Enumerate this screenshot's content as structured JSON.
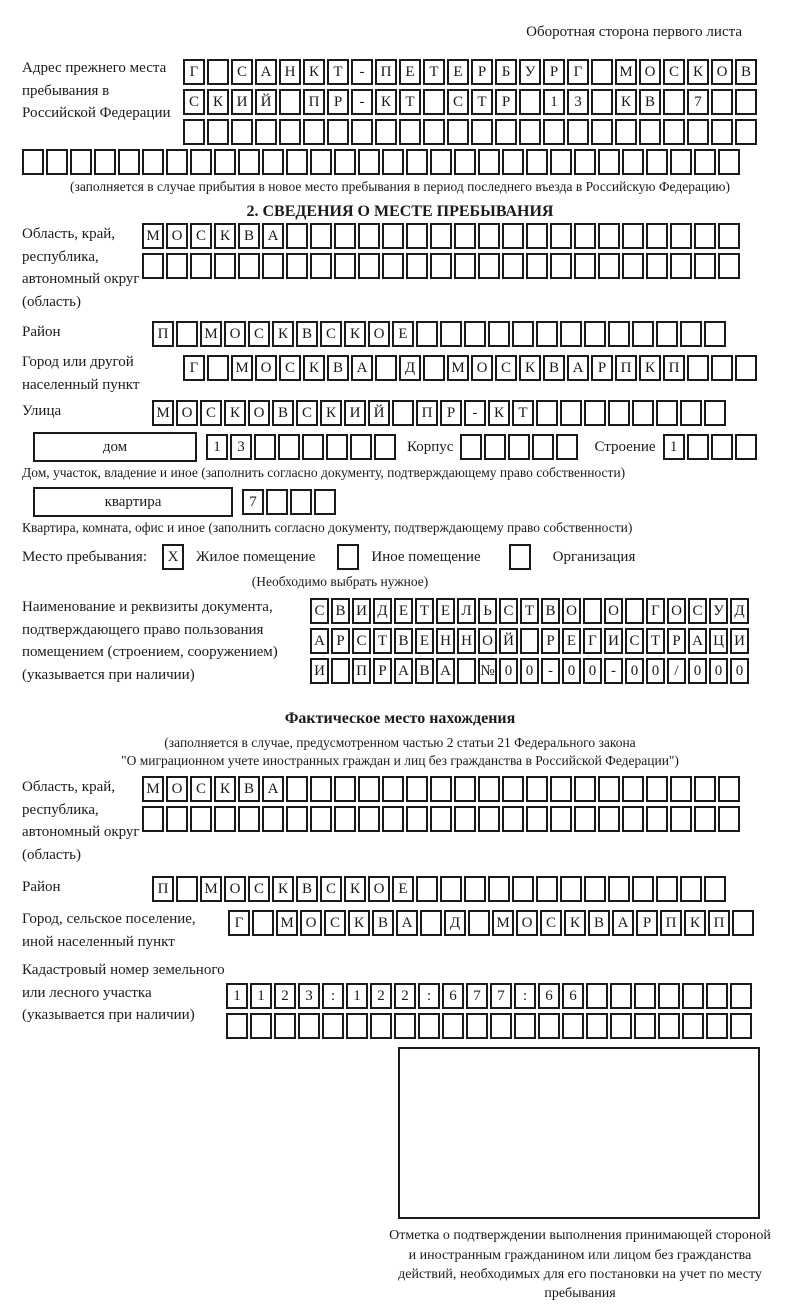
{
  "page": {
    "side_note": "Оборотная сторона первого листа"
  },
  "prev_address": {
    "label": "Адрес прежнего места пребывания в Российской Федерации",
    "note": "(заполняется в случае прибытия в новое место пребывания в период последнего въезда в Российскую Федерацию)",
    "rows": [
      {
        "text": "Г САНКТ-ПЕТЕРБУРГ МОСКОВ",
        "len": 24
      },
      {
        "text": "СКИЙ ПР-КТ СТР 13 КВ 7",
        "len": 24
      },
      {
        "text": "",
        "len": 24
      },
      {
        "text": "",
        "len": 30
      }
    ]
  },
  "section2": {
    "heading": "2. СВЕДЕНИЯ О МЕСТЕ ПРЕБЫВАНИЯ",
    "region": {
      "label": "Область, край, республика, автономный округ (область)",
      "rows": [
        {
          "text": "МОСКВА",
          "len": 25
        },
        {
          "text": "",
          "len": 25
        }
      ]
    },
    "district": {
      "label": "Район",
      "row": {
        "text": "П МОСКВСКОЕ",
        "len": 24
      }
    },
    "city": {
      "label": "Город или другой населенный пункт",
      "row": {
        "text": "Г МОСКВА Д МОСКВАРПКП",
        "len": 24
      }
    },
    "street": {
      "label": "Улица",
      "row": {
        "text": "МОСКОВСКИЙ ПР-КТ",
        "len": 24
      }
    },
    "house": {
      "box_label": "дом",
      "row": {
        "text": "13",
        "len": 8
      },
      "korpus_label": "Корпус",
      "korpus_row": {
        "text": "",
        "len": 5
      },
      "stroenie_label": "Строение",
      "stroenie_row": {
        "text": "1",
        "len": 4
      },
      "note": "Дом, участок, владение и иное (заполнить согласно документу, подтверждающему право собственности)"
    },
    "apartment": {
      "box_label": "квартира",
      "row": {
        "text": "7",
        "len": 4
      },
      "note": "Квартира, комната, офис и иное (заполнить согласно документу, подтверждающему право собственности)"
    },
    "place_type": {
      "label": "Место пребывания:",
      "options": [
        {
          "label": "Жилое помещение",
          "mark": "X"
        },
        {
          "label": "Иное помещение",
          "mark": ""
        },
        {
          "label": "Организация",
          "mark": ""
        }
      ],
      "note": "(Необходимо выбрать нужное)"
    },
    "document": {
      "label": "Наименование и реквизиты документа, подтверждающего право пользования помещением (строением, сооружением) (указывается при наличии)",
      "rows": [
        {
          "text": "СВИДЕТЕЛЬСТВО О ГОСУД",
          "len": 21
        },
        {
          "text": "АРСТВЕННОЙ РЕГИСТРАЦИ",
          "len": 21
        },
        {
          "text": "И ПРАВА №00-00-00/000",
          "len": 21
        }
      ]
    }
  },
  "actual_location": {
    "heading": "Фактическое место нахождения",
    "note_line1": "(заполняется в случае, предусмотренном частью 2 статьи 21 Федерального закона",
    "note_line2": "\"О миграционном учете иностранных граждан и лиц без гражданства в Российской Федерации\")",
    "region": {
      "label": "Область, край, республика, автономный округ (область)",
      "rows": [
        {
          "text": "МОСКВА",
          "len": 25
        },
        {
          "text": "",
          "len": 25
        }
      ]
    },
    "district": {
      "label": "Район",
      "row": {
        "text": "П МОСКВСКОЕ",
        "len": 24
      }
    },
    "city": {
      "label": "Город, сельское поселение, иной населенный пункт",
      "row": {
        "text": "Г МОСКВА Д МОСКВАРПКП",
        "len": 22
      }
    },
    "cadastral": {
      "label": "Кадастровый номер земельного или лесного участка (указывается при наличии)",
      "rows": [
        {
          "text": "1123:122:677:66",
          "len": 22
        },
        {
          "text": "",
          "len": 22
        }
      ]
    },
    "stamp_caption": "Отметка о подтверждении выполнения принимающей стороной и иностранным гражданином или лицом без гражданства действий, необходимых для его постановки на учет по месту пребывания"
  }
}
